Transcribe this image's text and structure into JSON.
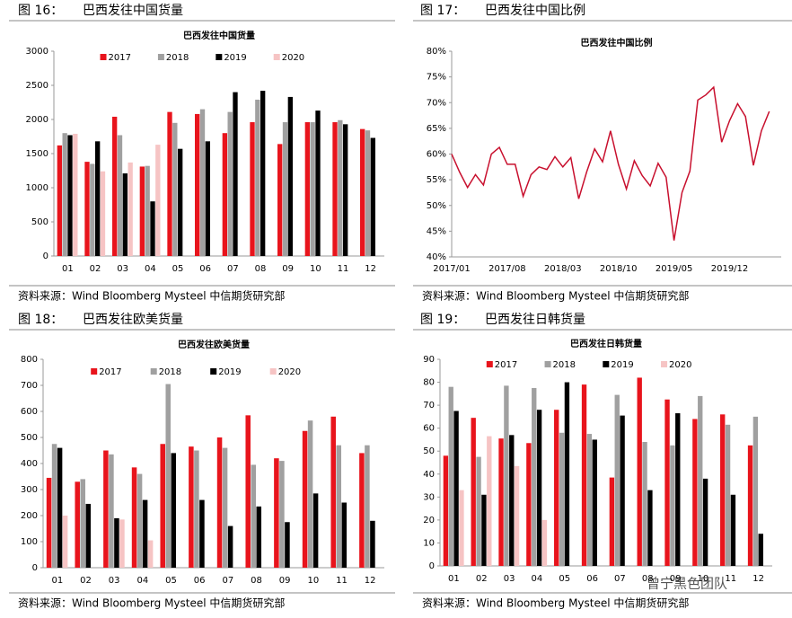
{
  "chart_data": [
    {
      "type": "bar",
      "figure": "图 16：",
      "heading": "巴西发往中国货量",
      "title": "巴西发往中国货量",
      "source": "资料来源：Wind Bloomberg Mysteel 中信期货研究部",
      "categories": [
        "01",
        "02",
        "03",
        "04",
        "05",
        "06",
        "07",
        "08",
        "09",
        "10",
        "11",
        "12"
      ],
      "series": [
        {
          "name": "2017",
          "color": "#e8141c",
          "values": [
            1620,
            1380,
            2040,
            1310,
            2110,
            2080,
            1800,
            1960,
            1640,
            1960,
            1960,
            1860
          ]
        },
        {
          "name": "2018",
          "color": "#a0a0a0",
          "values": [
            1800,
            1350,
            1770,
            1320,
            1950,
            2150,
            2110,
            2290,
            1960,
            1960,
            1990,
            1840
          ]
        },
        {
          "name": "2019",
          "color": "#000000",
          "values": [
            1770,
            1680,
            1210,
            800,
            1570,
            1680,
            2400,
            2420,
            2330,
            2130,
            1930,
            1730
          ]
        },
        {
          "name": "2020",
          "color": "#f6c4c4",
          "values": [
            1790,
            1240,
            1370,
            1630,
            null,
            null,
            null,
            null,
            null,
            null,
            null,
            null
          ]
        }
      ],
      "ylim": [
        0,
        3000
      ],
      "yticks": [
        0,
        500,
        1000,
        1500,
        2000,
        2500,
        3000
      ]
    },
    {
      "type": "line",
      "figure": "图 17：",
      "heading": "巴西发往中国比例",
      "title": "巴西发往中国比例",
      "source": "资料来源：Wind Bloomberg Mysteel 中信期货研究部",
      "categories": [
        "2017/01",
        null,
        null,
        null,
        null,
        null,
        null,
        "2017/08",
        null,
        null,
        null,
        null,
        null,
        null,
        "2018/03",
        null,
        null,
        null,
        null,
        null,
        null,
        "2018/10",
        null,
        null,
        null,
        null,
        null,
        null,
        "2019/05",
        null,
        null,
        null,
        null,
        null,
        null,
        "2019/12",
        null,
        null,
        null,
        null,
        null
      ],
      "series": [
        {
          "name": "巴西发往中国比例",
          "color": "#c8102e",
          "values": [
            60,
            56.5,
            53.5,
            56,
            54,
            60,
            61.3,
            58,
            58,
            51.8,
            56,
            57.5,
            57,
            59.5,
            57.5,
            59.3,
            51.3,
            56.5,
            61,
            58.5,
            64.5,
            58,
            53.2,
            58.7,
            55.8,
            53.8,
            58.2,
            55.5,
            43.2,
            52.5,
            56.7,
            70.5,
            71.5,
            73,
            62.3,
            66.5,
            69.8,
            67.3,
            57.8,
            64.5,
            68.3
          ]
        }
      ],
      "ylim": [
        40,
        80
      ],
      "yticks": [
        {
          "value": 40,
          "label": "40%"
        },
        {
          "value": 45,
          "label": "45%"
        },
        {
          "value": 50,
          "label": "50%"
        },
        {
          "value": 55,
          "label": "55%"
        },
        {
          "value": 60,
          "label": "60%"
        },
        {
          "value": 65,
          "label": "65%"
        },
        {
          "value": 70,
          "label": "70%"
        },
        {
          "value": 75,
          "label": "75%"
        },
        {
          "value": 80,
          "label": "80%"
        }
      ]
    },
    {
      "type": "bar",
      "figure": "图 18：",
      "heading": "巴西发往欧美货量",
      "title": "巴西发往欧美货量",
      "source": "资料来源：Wind Bloomberg Mysteel 中信期货研究部",
      "categories": [
        "01",
        "02",
        "03",
        "04",
        "05",
        "06",
        "07",
        "08",
        "09",
        "10",
        "11",
        "12"
      ],
      "series": [
        {
          "name": "2017",
          "color": "#e8141c",
          "values": [
            345,
            330,
            450,
            385,
            475,
            465,
            500,
            585,
            420,
            525,
            580,
            440
          ]
        },
        {
          "name": "2018",
          "color": "#a0a0a0",
          "values": [
            475,
            340,
            435,
            360,
            705,
            450,
            460,
            395,
            410,
            565,
            470,
            470
          ]
        },
        {
          "name": "2019",
          "color": "#000000",
          "values": [
            460,
            245,
            190,
            260,
            440,
            260,
            160,
            235,
            175,
            285,
            250,
            180
          ]
        },
        {
          "name": "2020",
          "color": "#f6c4c4",
          "values": [
            200,
            null,
            185,
            105,
            null,
            null,
            null,
            null,
            null,
            null,
            null,
            null
          ]
        }
      ],
      "ylim": [
        0,
        800
      ],
      "yticks": [
        0,
        100,
        200,
        300,
        400,
        500,
        600,
        700,
        800
      ]
    },
    {
      "type": "bar",
      "figure": "图 19：",
      "heading": "巴西发往日韩货量",
      "title": "巴西发往日韩货量",
      "source": "资料来源：Wind Bloomberg Mysteel 中信期货研究部",
      "categories": [
        "01",
        "02",
        "03",
        "04",
        "05",
        "06",
        "07",
        "08",
        "09",
        "10",
        "11",
        "12"
      ],
      "series": [
        {
          "name": "2017",
          "color": "#e8141c",
          "values": [
            48,
            64.5,
            55.5,
            53.5,
            68,
            79,
            38.5,
            82,
            72.5,
            64,
            66,
            52.5
          ]
        },
        {
          "name": "2018",
          "color": "#a0a0a0",
          "values": [
            78,
            47.5,
            78.5,
            77.5,
            58,
            57.5,
            74.5,
            54,
            52.5,
            74,
            61.5,
            65
          ]
        },
        {
          "name": "2019",
          "color": "#000000",
          "values": [
            67.5,
            31,
            57,
            68,
            80,
            55,
            65.5,
            33,
            66.5,
            38,
            31,
            14
          ]
        },
        {
          "name": "2020",
          "color": "#f6c4c4",
          "values": [
            33,
            56.5,
            43.5,
            20,
            null,
            null,
            null,
            null,
            null,
            null,
            null,
            null
          ]
        }
      ],
      "ylim": [
        0,
        90
      ],
      "yticks": [
        0,
        10,
        20,
        30,
        40,
        50,
        60,
        70,
        80,
        90
      ]
    }
  ],
  "watermark": "曾宁黑色团队"
}
